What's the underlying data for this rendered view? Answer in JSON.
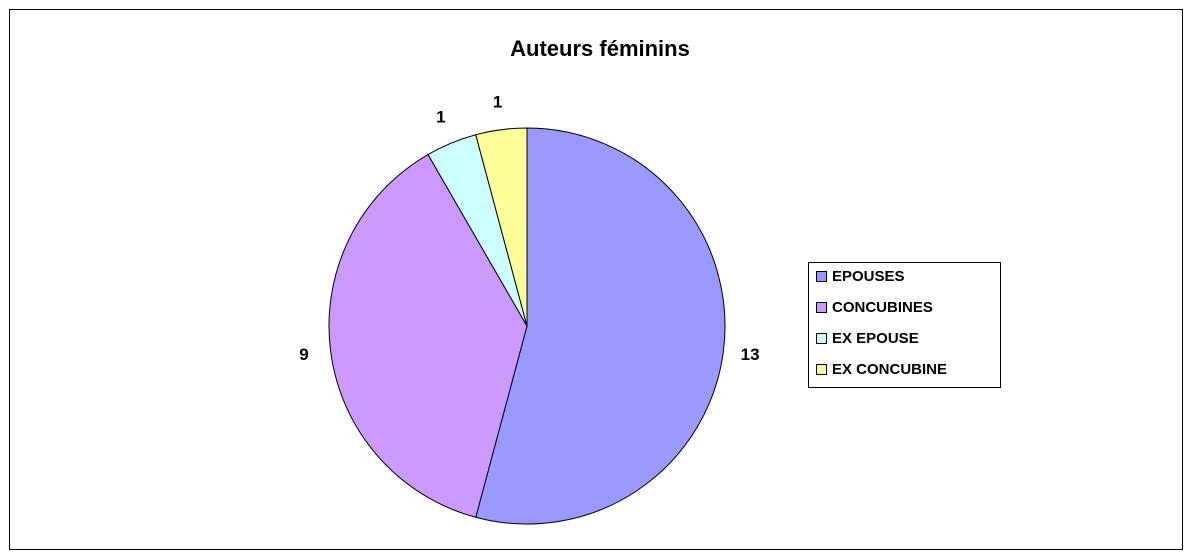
{
  "chart_data": {
    "type": "pie",
    "title": "Auteurs féminins",
    "categories": [
      "EPOUSES",
      "CONCUBINES",
      "EX EPOUSE",
      "EX CONCUBINE"
    ],
    "values": [
      13,
      9,
      1,
      1
    ],
    "colors": [
      "#9999ff",
      "#cc99ff",
      "#ccffff",
      "#ffff99"
    ],
    "legend": "right"
  }
}
